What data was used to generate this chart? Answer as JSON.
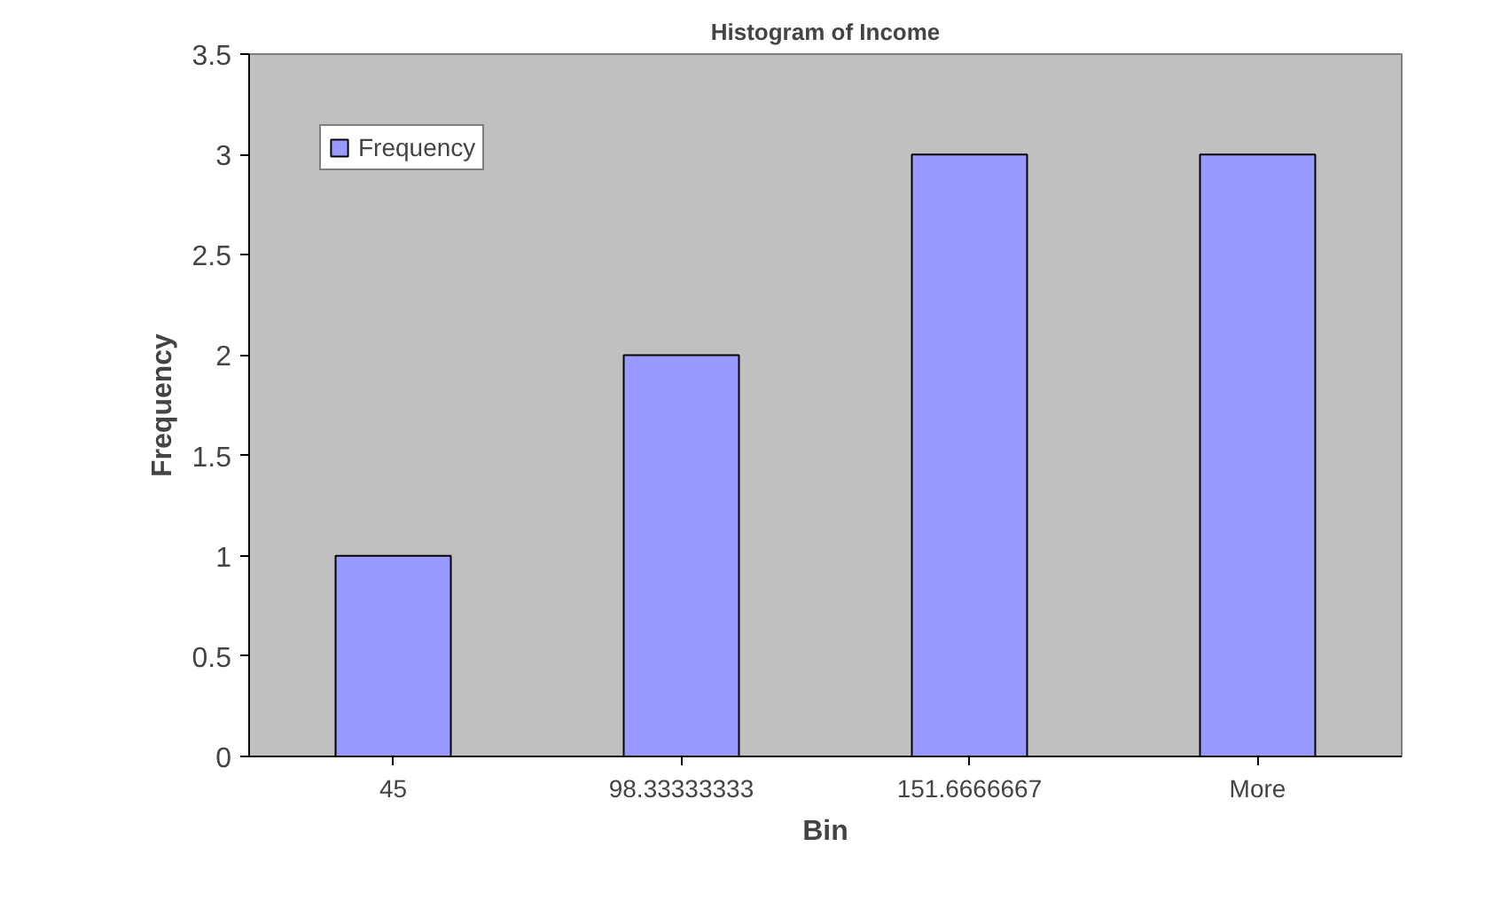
{
  "chart_data": {
    "type": "bar",
    "title": "Histogram of Income",
    "xlabel": "Bin",
    "ylabel": "Frequency",
    "categories": [
      "45",
      "98.33333333",
      "151.6666667",
      "More"
    ],
    "series": [
      {
        "name": "Frequency",
        "color": "#9999ff",
        "values": [
          1,
          2,
          3,
          3
        ]
      }
    ],
    "ylim": [
      0,
      3.5
    ],
    "yticks": [
      0,
      0.5,
      1,
      1.5,
      2,
      2.5,
      3,
      3.5
    ],
    "grid": false,
    "legend": "top left"
  }
}
